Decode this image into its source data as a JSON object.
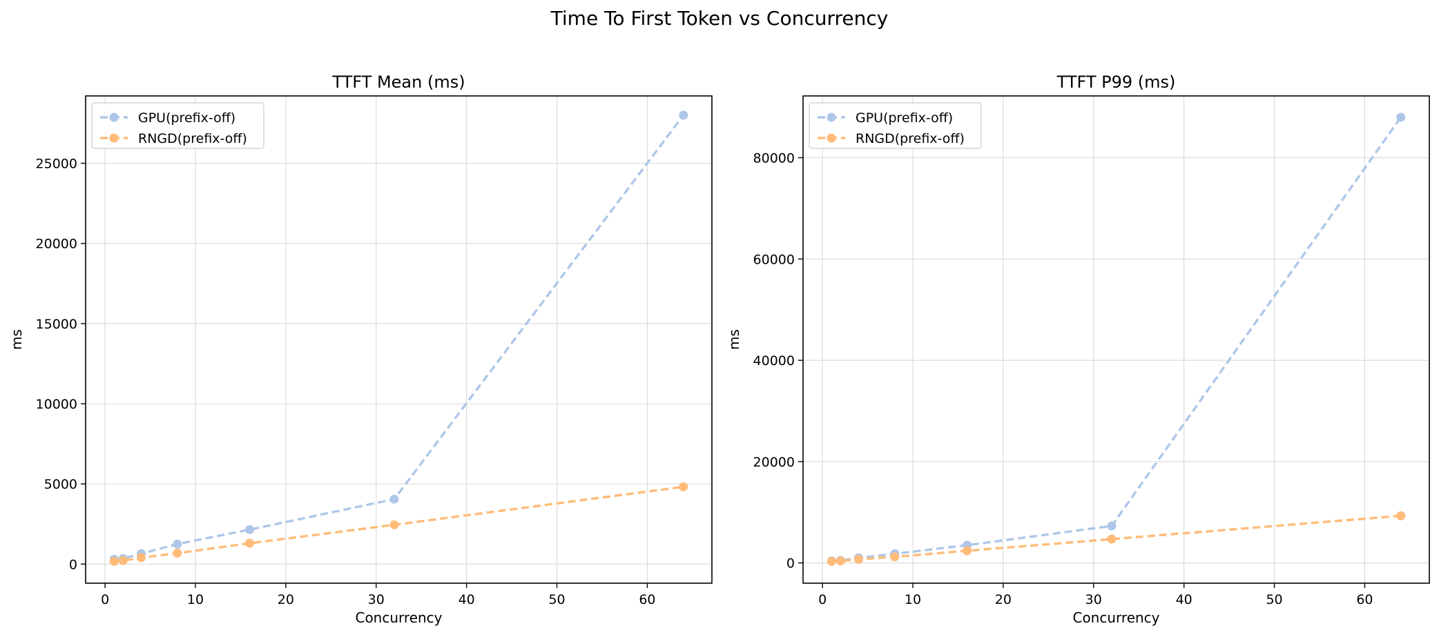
{
  "figure_title": "Time To First Token vs Concurrency",
  "chart_data": [
    {
      "type": "line",
      "title": "TTFT Mean (ms)",
      "xlabel": "Concurrency",
      "ylabel": "ms",
      "xlim": [
        -2.15,
        67.15
      ],
      "ylim": [
        -1190,
        29200
      ],
      "xticks": [
        0,
        10,
        20,
        30,
        40,
        50,
        60
      ],
      "yticks": [
        0,
        5000,
        10000,
        15000,
        20000,
        25000
      ],
      "grid": true,
      "legend_position": "top-left",
      "x": [
        1,
        2,
        4,
        8,
        16,
        32,
        64
      ],
      "series": [
        {
          "name": "GPU(prefix-off)",
          "color": "#aec7e8",
          "values": [
            300,
            350,
            650,
            1250,
            2150,
            4050,
            28000
          ]
        },
        {
          "name": "RNGD(prefix-off)",
          "color": "#ffbb78",
          "values": [
            170,
            220,
            400,
            680,
            1300,
            2450,
            4820
          ]
        }
      ]
    },
    {
      "type": "line",
      "title": "TTFT P99 (ms)",
      "xlabel": "Concurrency",
      "ylabel": "ms",
      "xlim": [
        -2.15,
        67.15
      ],
      "ylim": [
        -4000,
        92200
      ],
      "xticks": [
        0,
        10,
        20,
        30,
        40,
        50,
        60
      ],
      "yticks": [
        0,
        20000,
        40000,
        60000,
        80000
      ],
      "grid": true,
      "legend_position": "top-left",
      "x": [
        1,
        2,
        4,
        8,
        16,
        32,
        64
      ],
      "series": [
        {
          "name": "GPU(prefix-off)",
          "color": "#aec7e8",
          "values": [
            400,
            500,
            1000,
            1800,
            3500,
            7300,
            88000
          ]
        },
        {
          "name": "RNGD(prefix-off)",
          "color": "#ffbb78",
          "values": [
            300,
            400,
            700,
            1200,
            2400,
            4700,
            9300
          ]
        }
      ]
    }
  ]
}
